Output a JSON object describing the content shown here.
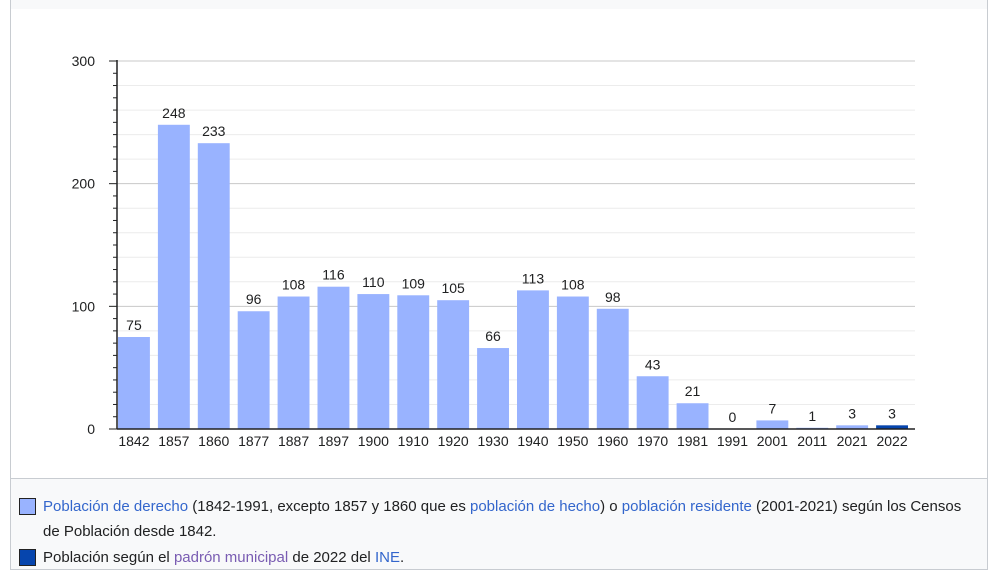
{
  "chart_data": {
    "type": "bar",
    "categories": [
      "1842",
      "1857",
      "1860",
      "1877",
      "1887",
      "1897",
      "1900",
      "1910",
      "1920",
      "1930",
      "1940",
      "1950",
      "1960",
      "1970",
      "1981",
      "1991",
      "2001",
      "2011",
      "2021",
      "2022"
    ],
    "values": [
      75,
      248,
      233,
      96,
      108,
      116,
      110,
      109,
      105,
      66,
      113,
      108,
      98,
      43,
      21,
      0,
      7,
      1,
      3,
      3
    ],
    "series_colors": [
      "#99b3ff",
      "#99b3ff",
      "#99b3ff",
      "#99b3ff",
      "#99b3ff",
      "#99b3ff",
      "#99b3ff",
      "#99b3ff",
      "#99b3ff",
      "#99b3ff",
      "#99b3ff",
      "#99b3ff",
      "#99b3ff",
      "#99b3ff",
      "#99b3ff",
      "#99b3ff",
      "#99b3ff",
      "#99b3ff",
      "#99b3ff",
      "#0645ad"
    ],
    "ylim": [
      0,
      300
    ],
    "y_ticks": [
      "0",
      "100",
      "200",
      "300"
    ],
    "grid": true,
    "title": "",
    "xlabel": "",
    "ylabel": ""
  },
  "legend": {
    "derecho": {
      "color": "#99b3ff",
      "link1": "Población de derecho",
      "text1": " (1842-1991, excepto 1857 y 1860 que es ",
      "link2": "población de hecho",
      "text2": ") o ",
      "link3": "población residente",
      "text3": " (2001-2021) según los Censos de Población desde 1842."
    },
    "padron": {
      "color": "#0645ad",
      "text1": "Población según el ",
      "link1": "padrón municipal",
      "text2": " de 2022 del ",
      "link2": "INE",
      "text3": "."
    }
  }
}
